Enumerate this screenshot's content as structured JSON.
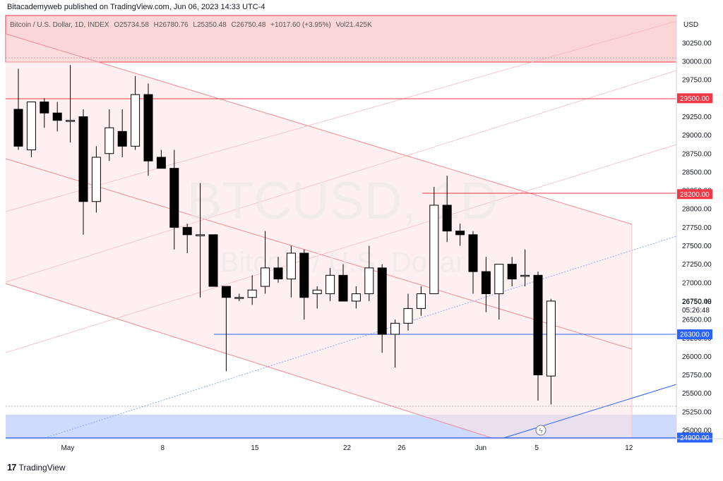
{
  "header": {
    "caption": "Bitacademyweb published on TradingView.com, Jun 06, 2023 14:33 UTC-4"
  },
  "legend": {
    "symbol": "Bitcoin / U.S. Dollar, 1D, INDEX",
    "open": "O25734.58",
    "high": "H26780.76",
    "low": "L25350.48",
    "close": "C26750.48",
    "change": "+1017.60 (+3.95%)",
    "vol": "Vol21.425K"
  },
  "watermark": {
    "ticker": "BTCUSD, 1D",
    "name": "Bitcoin / U.S. Dollar"
  },
  "footer": {
    "brand": "TradingView"
  },
  "colors": {
    "up_fill": "#ffffff",
    "down_fill": "#000000",
    "candle_border": "#000000",
    "red_line": "#f23645",
    "blue_line": "#2962ff",
    "channel_fill": "#fde3e3",
    "resistance_zone": "#f8c8c8",
    "support_zone": "#c7d5fb"
  },
  "chart_data": {
    "type": "candlestick",
    "currency": "USD",
    "y_axis_ticks": [
      "30250.00",
      "30000.00",
      "29750.00",
      "29500.00",
      "29250.00",
      "29000.00",
      "28750.00",
      "28500.00",
      "28250.00",
      "28000.00",
      "27750.00",
      "27500.00",
      "27250.00",
      "27000.00",
      "26750.00",
      "26500.00",
      "26250.00",
      "26000.00",
      "25750.00",
      "25500.00",
      "25250.00",
      "25000.00"
    ],
    "y_range": [
      24900,
      30500
    ],
    "x_axis_ticks": [
      "May",
      "8",
      "15",
      "22",
      "26",
      "Jun",
      "5",
      "12"
    ],
    "price_labels": [
      {
        "label": "29500.00",
        "value": 29500,
        "style": "red"
      },
      {
        "label": "28200.00",
        "value": 28200,
        "style": "red"
      },
      {
        "label": "26300.00",
        "value": 26300,
        "style": "blue"
      },
      {
        "label": "24900.00",
        "value": 24900,
        "style": "blue"
      }
    ],
    "current_price": {
      "label": "26750.48",
      "countdown": "05:26:48"
    },
    "candles": [
      {
        "date": "Apr 28",
        "o": 29350,
        "h": 29900,
        "l": 28800,
        "c": 28850
      },
      {
        "date": "Apr 29",
        "o": 28800,
        "h": 29450,
        "l": 28700,
        "c": 29450
      },
      {
        "date": "Apr 30",
        "o": 29450,
        "h": 29500,
        "l": 29100,
        "c": 29300
      },
      {
        "date": "May 1",
        "o": 29300,
        "h": 29450,
        "l": 29050,
        "c": 29200
      },
      {
        "date": "May 2",
        "o": 29200,
        "h": 29950,
        "l": 28900,
        "c": 29200
      },
      {
        "date": "May 3",
        "o": 29250,
        "h": 29350,
        "l": 27650,
        "c": 28100
      },
      {
        "date": "May 4",
        "o": 28100,
        "h": 28850,
        "l": 27950,
        "c": 28700
      },
      {
        "date": "May 5",
        "o": 28750,
        "h": 29350,
        "l": 28650,
        "c": 29100
      },
      {
        "date": "May 6",
        "o": 29050,
        "h": 29350,
        "l": 28700,
        "c": 28850
      },
      {
        "date": "May 7",
        "o": 28850,
        "h": 29800,
        "l": 28800,
        "c": 29550
      },
      {
        "date": "May 8",
        "o": 29550,
        "h": 29700,
        "l": 28450,
        "c": 28650
      },
      {
        "date": "May 9",
        "o": 28700,
        "h": 28800,
        "l": 28550,
        "c": 28550
      },
      {
        "date": "May 10",
        "o": 28550,
        "h": 28800,
        "l": 27450,
        "c": 27750
      },
      {
        "date": "May 11",
        "o": 27750,
        "h": 27800,
        "l": 27400,
        "c": 27650
      },
      {
        "date": "May 12",
        "o": 27650,
        "h": 28350,
        "l": 26800,
        "c": 27650
      },
      {
        "date": "May 13",
        "o": 27650,
        "h": 27650,
        "l": 26950,
        "c": 26950
      },
      {
        "date": "May 14",
        "o": 26950,
        "h": 26950,
        "l": 25800,
        "c": 26800
      },
      {
        "date": "May 15",
        "o": 26800,
        "h": 26850,
        "l": 26750,
        "c": 26800
      },
      {
        "date": "May 16",
        "o": 26800,
        "h": 27100,
        "l": 26700,
        "c": 26900
      },
      {
        "date": "May 17",
        "o": 26950,
        "h": 27700,
        "l": 26850,
        "c": 27200
      },
      {
        "date": "May 18",
        "o": 27200,
        "h": 27350,
        "l": 27000,
        "c": 27050
      },
      {
        "date": "May 19",
        "o": 27050,
        "h": 27500,
        "l": 26800,
        "c": 27400
      },
      {
        "date": "May 20",
        "o": 27400,
        "h": 27450,
        "l": 26500,
        "c": 26800
      },
      {
        "date": "May 21",
        "o": 26850,
        "h": 26950,
        "l": 26650,
        "c": 26900
      },
      {
        "date": "May 22",
        "o": 26850,
        "h": 27200,
        "l": 26750,
        "c": 27100
      },
      {
        "date": "May 23",
        "o": 27100,
        "h": 27250,
        "l": 26750,
        "c": 26750
      },
      {
        "date": "May 24",
        "o": 26750,
        "h": 26950,
        "l": 26650,
        "c": 26850
      },
      {
        "date": "May 25",
        "o": 26850,
        "h": 27500,
        "l": 26750,
        "c": 27200
      },
      {
        "date": "May 26",
        "o": 27200,
        "h": 27250,
        "l": 26050,
        "c": 26300
      },
      {
        "date": "May 27",
        "o": 26300,
        "h": 26500,
        "l": 25850,
        "c": 26450
      },
      {
        "date": "May 28",
        "o": 26450,
        "h": 26850,
        "l": 26350,
        "c": 26650
      },
      {
        "date": "May 29",
        "o": 26650,
        "h": 26950,
        "l": 26550,
        "c": 26850
      },
      {
        "date": "May 30",
        "o": 26850,
        "h": 28300,
        "l": 26850,
        "c": 28050
      },
      {
        "date": "May 31",
        "o": 28050,
        "h": 28450,
        "l": 27550,
        "c": 27700
      },
      {
        "date": "Jun 1",
        "o": 27700,
        "h": 27800,
        "l": 27500,
        "c": 27650
      },
      {
        "date": "Jun 2",
        "o": 27650,
        "h": 27700,
        "l": 26850,
        "c": 27150
      },
      {
        "date": "Jun 3",
        "o": 27150,
        "h": 27350,
        "l": 26600,
        "c": 26850
      },
      {
        "date": "Jun 4",
        "o": 26850,
        "h": 27250,
        "l": 26500,
        "c": 27250
      },
      {
        "date": "Jun 5",
        "o": 27250,
        "h": 27350,
        "l": 26950,
        "c": 27050
      },
      {
        "date": "Jun 5b",
        "o": 27100,
        "h": 27450,
        "l": 26950,
        "c": 27100
      },
      {
        "date": "Jun 6a",
        "o": 27100,
        "h": 27150,
        "l": 25400,
        "c": 25750
      },
      {
        "date": "Jun 6",
        "o": 25734.58,
        "h": 26780.76,
        "l": 25350.48,
        "c": 26750.48
      }
    ]
  }
}
